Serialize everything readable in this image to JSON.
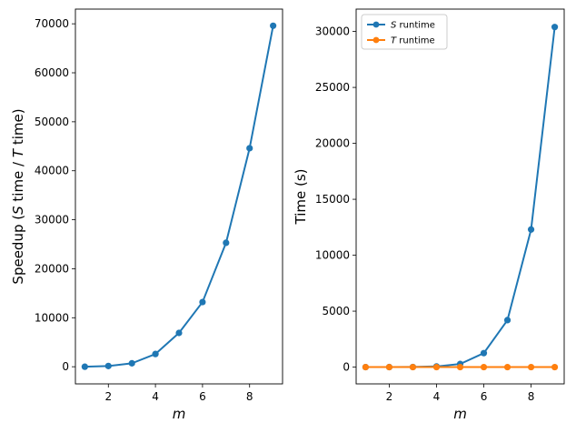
{
  "colors": {
    "blue": "#1f77b4",
    "orange": "#ff7f0e"
  },
  "chart_data": [
    {
      "type": "line",
      "title": "",
      "xlabel": "m",
      "ylabel_parts": [
        "Speedup (",
        "S",
        " time / ",
        "T",
        " time)"
      ],
      "xlim": [
        0.6,
        9.4
      ],
      "ylim": [
        -3500,
        73000
      ],
      "xticks": [
        2,
        4,
        6,
        8
      ],
      "yticks": [
        0,
        10000,
        20000,
        30000,
        40000,
        50000,
        60000,
        70000
      ],
      "grid": false,
      "x": [
        1,
        2,
        3,
        4,
        5,
        6,
        7,
        8,
        9
      ],
      "series": [
        {
          "values": [
            0,
            150,
            700,
            2600,
            6900,
            13200,
            25300,
            44600,
            69600
          ],
          "color": "#1f77b4"
        }
      ]
    },
    {
      "type": "line",
      "title": "",
      "xlabel": "m",
      "ylabel_parts": [
        "Time (s)"
      ],
      "xlim": [
        0.6,
        9.4
      ],
      "ylim": [
        -1500,
        32000
      ],
      "xticks": [
        2,
        4,
        6,
        8
      ],
      "yticks": [
        0,
        5000,
        10000,
        15000,
        20000,
        25000,
        30000
      ],
      "grid": false,
      "legend": "top-left",
      "x": [
        1,
        2,
        3,
        4,
        5,
        6,
        7,
        8,
        9
      ],
      "series": [
        {
          "name_var": "S",
          "name_rest": " runtime",
          "values": [
            0,
            2,
            10,
            60,
            280,
            1250,
            4200,
            12300,
            30400
          ],
          "color": "#1f77b4"
        },
        {
          "name_var": "T",
          "name_rest": " runtime",
          "values": [
            0,
            0,
            0,
            0,
            0,
            0,
            0,
            0,
            0
          ],
          "color": "#ff7f0e"
        }
      ]
    }
  ]
}
